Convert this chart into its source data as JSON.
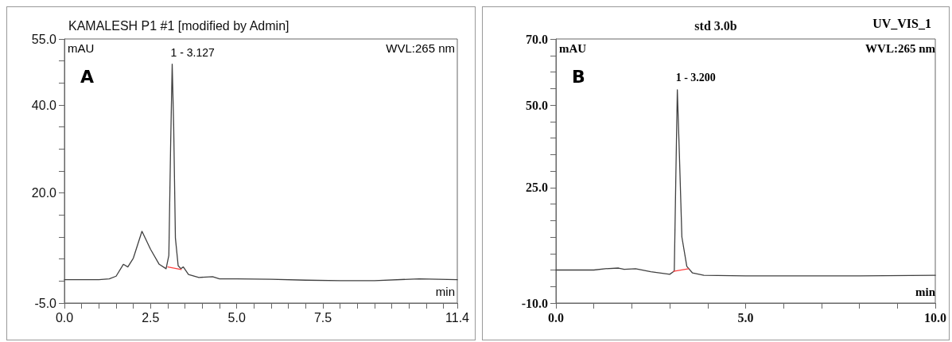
{
  "chart_data": [
    {
      "type": "line",
      "title": "KAMALESH P1 #1 [modified by Admin]",
      "xlabel": "min",
      "ylabel": "mAU",
      "marker": "none",
      "line_style": "solid",
      "grid": false,
      "xlim": [
        0,
        11.4
      ],
      "xticks": [
        {
          "value": 0,
          "label": "0.0"
        },
        {
          "value": 0.5,
          "label": null
        },
        {
          "value": 1,
          "label": null
        },
        {
          "value": 1.5,
          "label": null
        },
        {
          "value": 2,
          "label": null
        },
        {
          "value": 2.5,
          "label": "2.5"
        },
        {
          "value": 3,
          "label": null
        },
        {
          "value": 3.5,
          "label": null
        },
        {
          "value": 4,
          "label": null
        },
        {
          "value": 4.5,
          "label": null
        },
        {
          "value": 5,
          "label": "5.0"
        },
        {
          "value": 5.5,
          "label": null
        },
        {
          "value": 6,
          "label": null
        },
        {
          "value": 6.5,
          "label": null
        },
        {
          "value": 7,
          "label": null
        },
        {
          "value": 7.5,
          "label": "7.5"
        },
        {
          "value": 8,
          "label": null
        },
        {
          "value": 8.5,
          "label": null
        },
        {
          "value": 9,
          "label": null
        },
        {
          "value": 9.5,
          "label": null
        },
        {
          "value": 10,
          "label": null
        },
        {
          "value": 10.5,
          "label": null
        },
        {
          "value": 11,
          "label": null
        },
        {
          "value": 11.4,
          "label": "11.4"
        }
      ],
      "ylim": [
        -5,
        55
      ],
      "yticks": [
        {
          "value": -5,
          "label": "-5.0"
        },
        {
          "value": 0,
          "label": null
        },
        {
          "value": 5,
          "label": null
        },
        {
          "value": 10,
          "label": null
        },
        {
          "value": 15,
          "label": null
        },
        {
          "value": 20,
          "label": "20.0"
        },
        {
          "value": 25,
          "label": null
        },
        {
          "value": 30,
          "label": null
        },
        {
          "value": 35,
          "label": null
        },
        {
          "value": 40,
          "label": "40.0"
        },
        {
          "value": 45,
          "label": null
        },
        {
          "value": 50,
          "label": null
        },
        {
          "value": 55,
          "label": "55.0"
        }
      ],
      "series": [
        {
          "color": "#404040",
          "x": [
            0,
            0.5,
            1.0,
            1.3,
            1.5,
            1.71,
            1.84,
            2.0,
            2.25,
            2.5,
            2.75,
            2.95,
            3.03,
            3.08,
            3.127,
            3.17,
            3.22,
            3.3,
            3.38,
            3.45,
            3.6,
            3.9,
            4.3,
            4.5,
            5.0,
            6.0,
            7.0,
            8.0,
            9.0,
            10.3,
            11.4
          ],
          "values": [
            0.3,
            0.3,
            0.3,
            0.5,
            1.1,
            3.8,
            3.2,
            5.2,
            11.3,
            7.2,
            3.8,
            2.8,
            5.8,
            30,
            49.3,
            35.3,
            9.8,
            3.5,
            2.8,
            3.2,
            1.5,
            0.8,
            1.0,
            0.5,
            0.5,
            0.4,
            0.2,
            0.1,
            0.1,
            0.5,
            0.3
          ]
        },
        {
          "color": "#ff4040",
          "x": [
            3.0,
            3.39
          ],
          "values": [
            3.2,
            2.6
          ]
        }
      ],
      "annotations": [
        "WVL:265 nm",
        "A",
        {
          "text": "1 - 3.127",
          "x": 3.127,
          "y": 49.3
        }
      ]
    },
    {
      "type": "line",
      "title": "std 3.0b",
      "xlabel": "min",
      "ylabel": "mAU",
      "marker": "none",
      "line_style": "solid",
      "grid": false,
      "xlim": [
        0,
        10
      ],
      "xticks": [
        {
          "value": 0,
          "label": "0.0"
        },
        {
          "value": 1,
          "label": null
        },
        {
          "value": 2,
          "label": null
        },
        {
          "value": 3,
          "label": null
        },
        {
          "value": 4,
          "label": null
        },
        {
          "value": 5,
          "label": "5.0"
        },
        {
          "value": 6,
          "label": null
        },
        {
          "value": 7,
          "label": null
        },
        {
          "value": 8,
          "label": null
        },
        {
          "value": 9,
          "label": null
        },
        {
          "value": 10,
          "label": "10.0"
        }
      ],
      "ylim": [
        -10,
        70
      ],
      "yticks": [
        {
          "value": -10,
          "label": "-10.0"
        },
        {
          "value": -5,
          "label": null
        },
        {
          "value": 0,
          "label": null
        },
        {
          "value": 5,
          "label": null
        },
        {
          "value": 10,
          "label": null
        },
        {
          "value": 15,
          "label": null
        },
        {
          "value": 20,
          "label": null
        },
        {
          "value": 25,
          "label": "25.0"
        },
        {
          "value": 30,
          "label": null
        },
        {
          "value": 35,
          "label": null
        },
        {
          "value": 40,
          "label": null
        },
        {
          "value": 45,
          "label": null
        },
        {
          "value": 50,
          "label": "50.0"
        },
        {
          "value": 55,
          "label": null
        },
        {
          "value": 60,
          "label": null
        },
        {
          "value": 65,
          "label": null
        },
        {
          "value": 70,
          "label": "70.0"
        }
      ],
      "series": [
        {
          "color": "#404040",
          "x": [
            0,
            0.5,
            1.0,
            1.3,
            1.65,
            1.8,
            2.1,
            2.5,
            3.0,
            3.12,
            3.16,
            3.2,
            3.25,
            3.32,
            3.45,
            3.6,
            3.9,
            5.0,
            8.0,
            10.0
          ],
          "values": [
            0,
            0,
            0,
            0.4,
            0.6,
            0.2,
            0.4,
            -0.5,
            -1.3,
            -0.3,
            27.7,
            54.6,
            36.7,
            10,
            1.1,
            -0.9,
            -1.6,
            -1.8,
            -1.8,
            -1.6
          ]
        },
        {
          "color": "#ff4040",
          "x": [
            3.1,
            3.5
          ],
          "values": [
            -0.4,
            0.4
          ]
        }
      ],
      "annotations": [
        "UV_VIS_1",
        "WVL:265 nm",
        "B",
        {
          "text": "1 - 3.200",
          "x": 3.2,
          "y": 54.6
        }
      ]
    }
  ]
}
